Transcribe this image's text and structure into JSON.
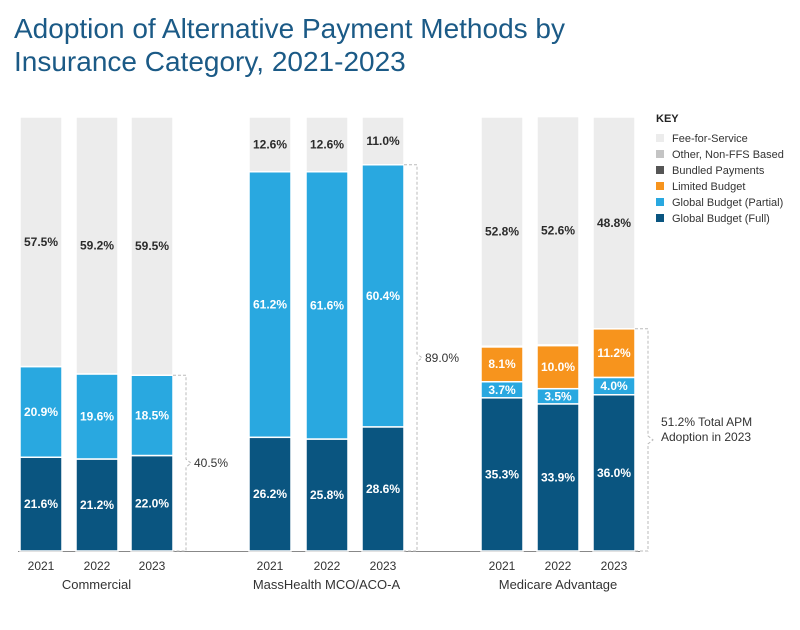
{
  "title": "Adoption of Alternative Payment Methods by Insurance Category, 2021-2023",
  "colors": {
    "Fee-for-Service": "#ececec",
    "Other, Non-FFS Based": "#c4c4c4",
    "Bundled Payments": "#555555",
    "Limited Budget": "#f7941d",
    "Global Budget (Partial)": "#29a8e0",
    "Global Budget (Full)": "#0a5580"
  },
  "chart_data": {
    "type": "bar",
    "stacked": true,
    "title": "Adoption of Alternative Payment Methods by Insurance Category, 2021-2023",
    "xlabel": "",
    "ylabel": "",
    "ylim": [
      0,
      100
    ],
    "legend": {
      "title": "KEY",
      "position": "top-right",
      "entries": [
        "Fee-for-Service",
        "Other, Non-FFS Based",
        "Bundled Payments",
        "Limited Budget",
        "Global Budget (Partial)",
        "Global Budget (Full)"
      ]
    },
    "groups": [
      {
        "name": "Commercial",
        "bars": [
          {
            "year": "2021",
            "segments": [
              {
                "series": "Global Budget (Full)",
                "value": 21.6,
                "label": "21.6%"
              },
              {
                "series": "Global Budget (Partial)",
                "value": 20.9,
                "label": "20.9%"
              },
              {
                "series": "Fee-for-Service",
                "value": 57.5,
                "label": "57.5%"
              }
            ]
          },
          {
            "year": "2022",
            "segments": [
              {
                "series": "Global Budget (Full)",
                "value": 21.2,
                "label": "21.2%"
              },
              {
                "series": "Global Budget (Partial)",
                "value": 19.6,
                "label": "19.6%"
              },
              {
                "series": "Fee-for-Service",
                "value": 59.2,
                "label": "59.2%"
              }
            ]
          },
          {
            "year": "2023",
            "segments": [
              {
                "series": "Global Budget (Full)",
                "value": 22.0,
                "label": "22.0%"
              },
              {
                "series": "Global Budget (Partial)",
                "value": 18.5,
                "label": "18.5%"
              },
              {
                "series": "Fee-for-Service",
                "value": 59.5,
                "label": "59.5%"
              }
            ]
          }
        ],
        "annotation": {
          "text": "40.5%",
          "from": 0,
          "to": 40.5
        }
      },
      {
        "name": "MassHealth MCO/ACO-A",
        "bars": [
          {
            "year": "2021",
            "segments": [
              {
                "series": "Global Budget (Full)",
                "value": 26.2,
                "label": "26.2%"
              },
              {
                "series": "Global Budget (Partial)",
                "value": 61.2,
                "label": "61.2%"
              },
              {
                "series": "Fee-for-Service",
                "value": 12.6,
                "label": "12.6%"
              }
            ]
          },
          {
            "year": "2022",
            "segments": [
              {
                "series": "Global Budget (Full)",
                "value": 25.8,
                "label": "25.8%"
              },
              {
                "series": "Global Budget (Partial)",
                "value": 61.6,
                "label": "61.6%"
              },
              {
                "series": "Fee-for-Service",
                "value": 12.6,
                "label": "12.6%"
              }
            ]
          },
          {
            "year": "2023",
            "segments": [
              {
                "series": "Global Budget (Full)",
                "value": 28.6,
                "label": "28.6%"
              },
              {
                "series": "Global Budget (Partial)",
                "value": 60.4,
                "label": "60.4%"
              },
              {
                "series": "Fee-for-Service",
                "value": 11.0,
                "label": "11.0%"
              }
            ]
          }
        ],
        "annotation": {
          "text": "89.0%",
          "from": 0,
          "to": 89.0
        }
      },
      {
        "name": "Medicare Advantage",
        "bars": [
          {
            "year": "2021",
            "segments": [
              {
                "series": "Global Budget (Full)",
                "value": 35.3,
                "label": "35.3%"
              },
              {
                "series": "Global Budget (Partial)",
                "value": 3.7,
                "label": "3.7%"
              },
              {
                "series": "Limited Budget",
                "value": 8.1,
                "label": "8.1%"
              },
              {
                "series": "Other, Non-FFS Based",
                "value": 0.1,
                "label": ""
              },
              {
                "series": "Fee-for-Service",
                "value": 52.8,
                "label": "52.8%"
              }
            ]
          },
          {
            "year": "2022",
            "segments": [
              {
                "series": "Global Budget (Full)",
                "value": 33.9,
                "label": "33.9%"
              },
              {
                "series": "Global Budget (Partial)",
                "value": 3.5,
                "label": "3.5%"
              },
              {
                "series": "Limited Budget",
                "value": 10.0,
                "label": "10.0%"
              },
              {
                "series": "Other, Non-FFS Based",
                "value": 0.1,
                "label": ""
              },
              {
                "series": "Fee-for-Service",
                "value": 52.6,
                "label": "52.6%"
              }
            ]
          },
          {
            "year": "2023",
            "segments": [
              {
                "series": "Global Budget (Full)",
                "value": 36.0,
                "label": "36.0%"
              },
              {
                "series": "Global Budget (Partial)",
                "value": 4.0,
                "label": "4.0%"
              },
              {
                "series": "Limited Budget",
                "value": 11.2,
                "label": "11.2%"
              },
              {
                "series": "Fee-for-Service",
                "value": 48.8,
                "label": "48.8%"
              }
            ]
          }
        ],
        "annotation": {
          "text_lines": [
            "51.2% Total APM",
            "Adoption in 2023"
          ],
          "from": 0,
          "to": 51.2
        }
      }
    ]
  }
}
